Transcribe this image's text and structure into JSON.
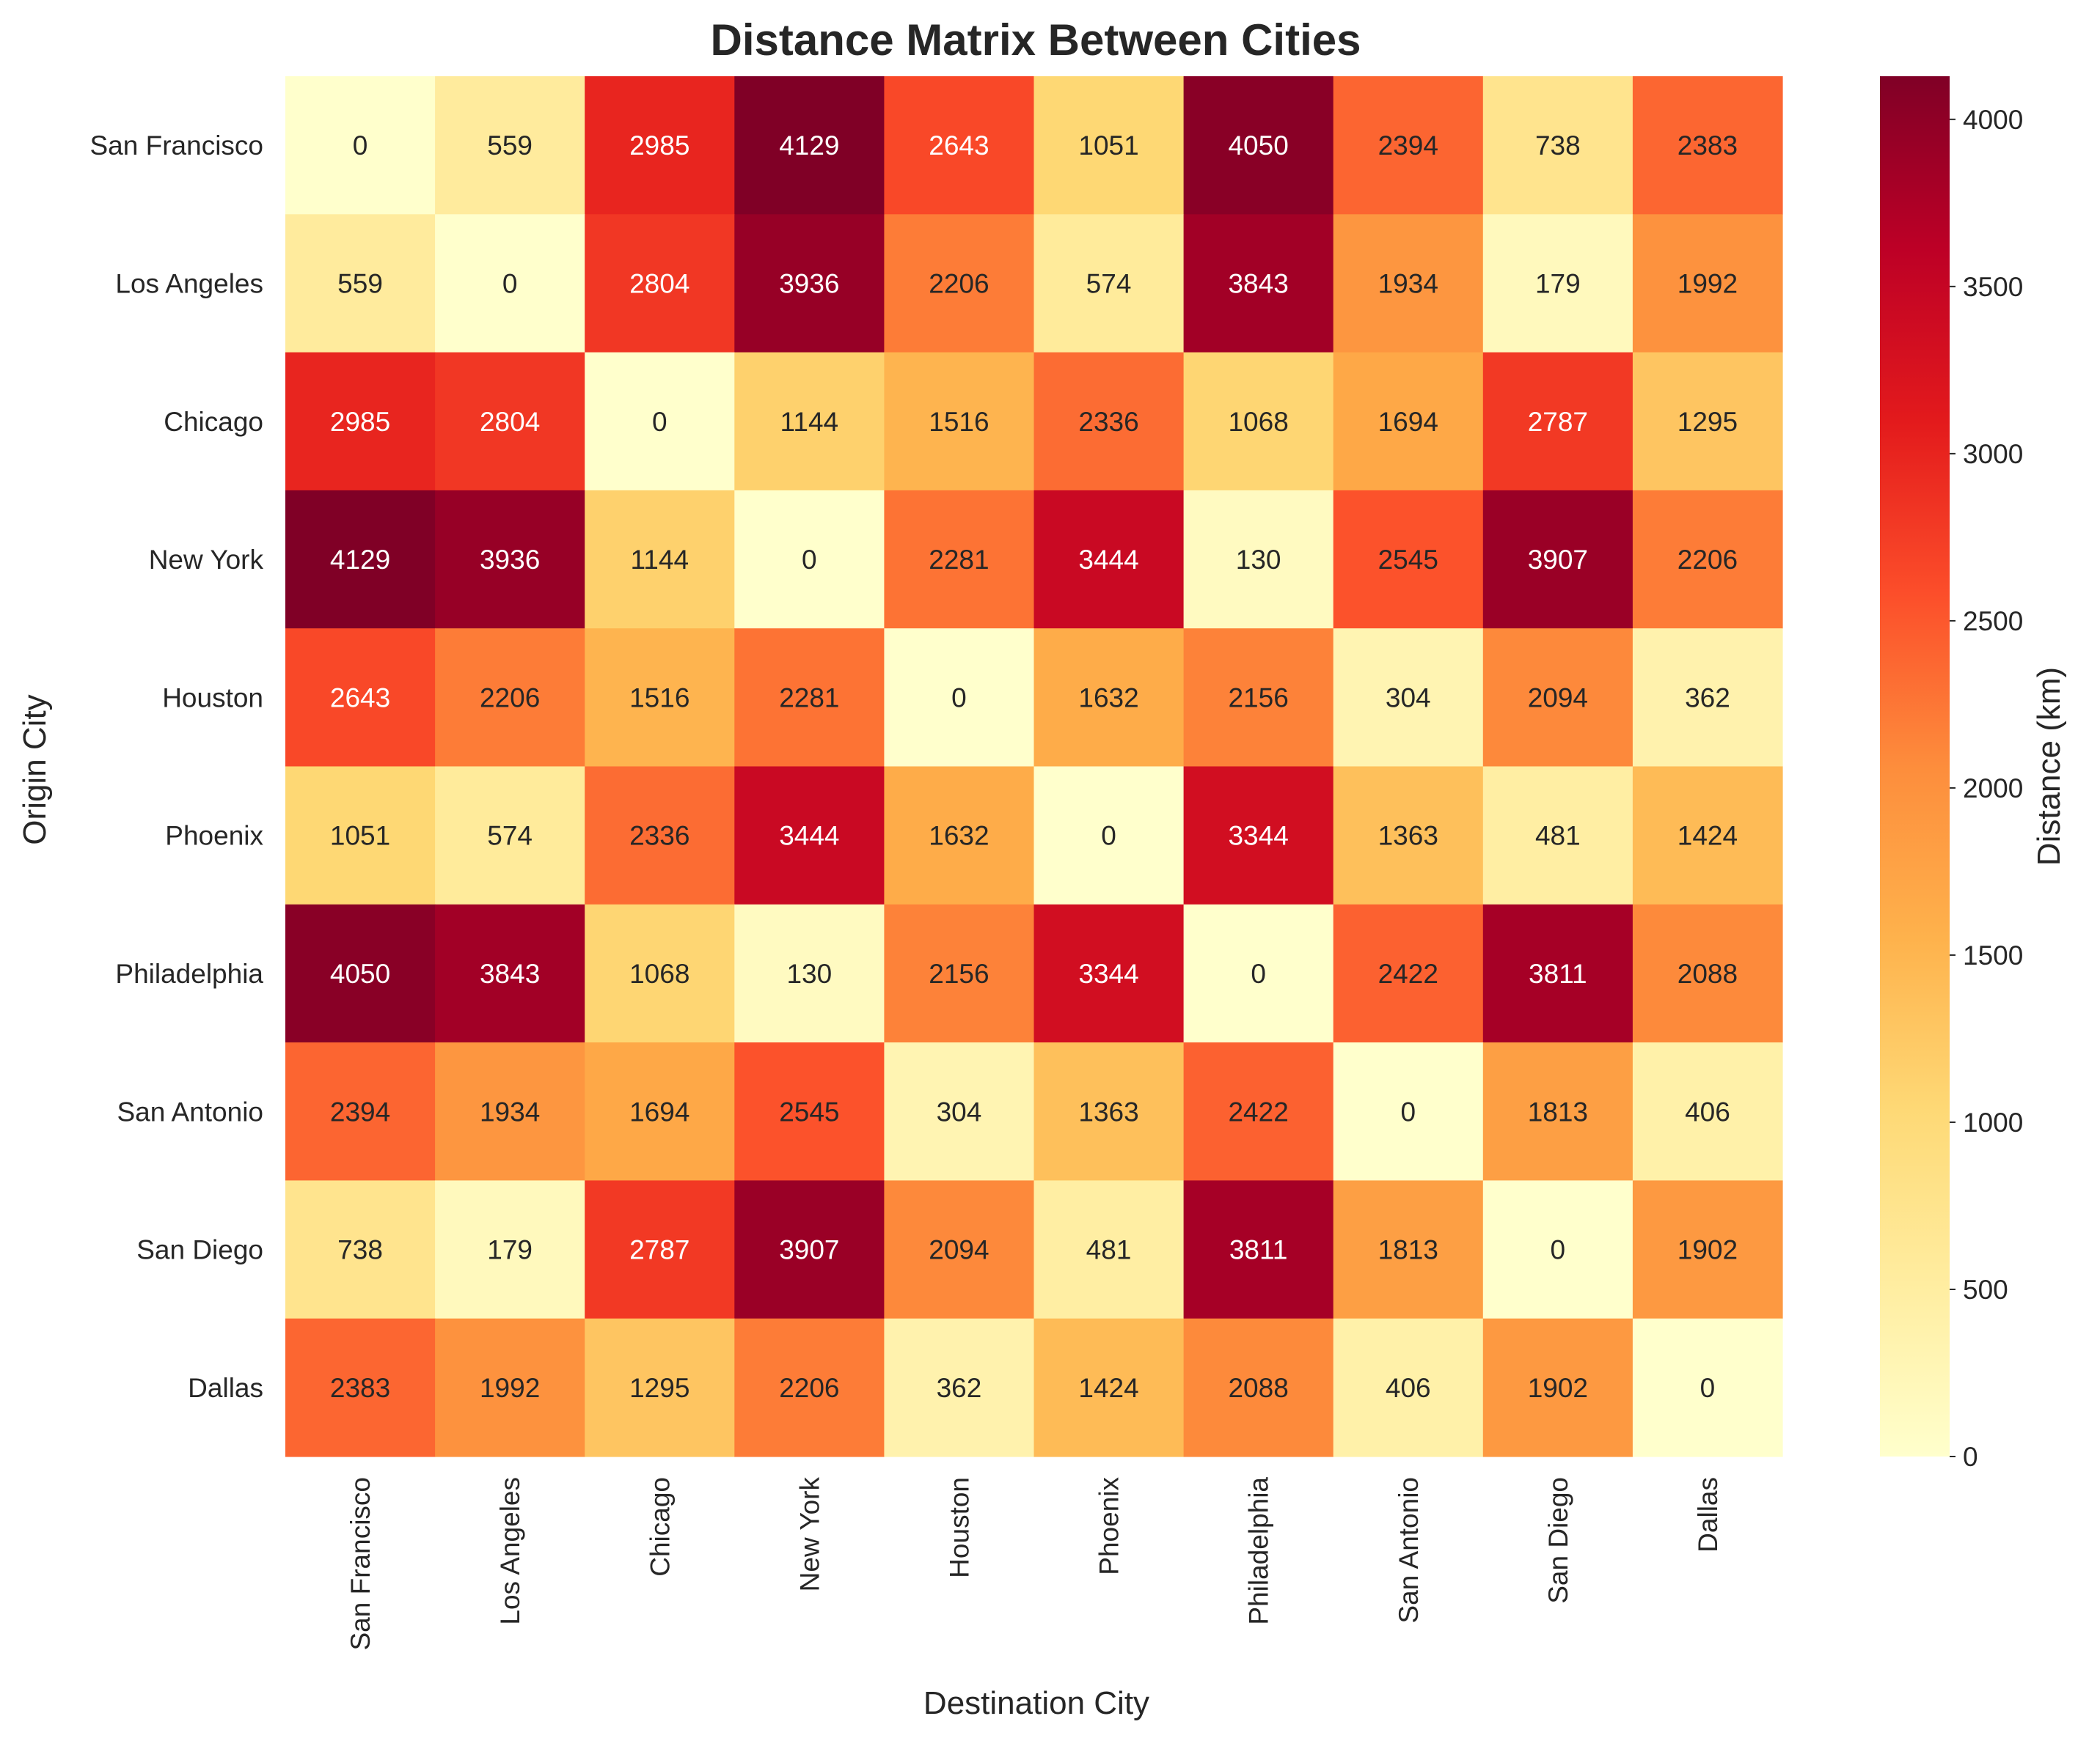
{
  "chart_data": {
    "type": "heatmap",
    "title": "Distance Matrix Between Cities",
    "xlabel": "Destination City",
    "ylabel": "Origin City",
    "colorbar_label": "Distance (km)",
    "colormap": "YlOrRd",
    "colormap_stops": [
      "#ffffcc",
      "#ffeda0",
      "#fed976",
      "#feb24c",
      "#fd8d3c",
      "#fc4e2a",
      "#e31a1c",
      "#bd0026",
      "#800026"
    ],
    "vmin": 0,
    "vmax": 4129,
    "colorbar_ticks": [
      0,
      500,
      1000,
      1500,
      2000,
      2500,
      3000,
      3500,
      4000
    ],
    "rows": [
      "San Francisco",
      "Los Angeles",
      "Chicago",
      "New York",
      "Houston",
      "Phoenix",
      "Philadelphia",
      "San Antonio",
      "San Diego",
      "Dallas"
    ],
    "columns": [
      "San Francisco",
      "Los Angeles",
      "Chicago",
      "New York",
      "Houston",
      "Phoenix",
      "Philadelphia",
      "San Antonio",
      "San Diego",
      "Dallas"
    ],
    "values": [
      [
        0,
        559,
        2985,
        4129,
        2643,
        1051,
        4050,
        2394,
        738,
        2383
      ],
      [
        559,
        0,
        2804,
        3936,
        2206,
        574,
        3843,
        1934,
        179,
        1992
      ],
      [
        2985,
        2804,
        0,
        1144,
        1516,
        2336,
        1068,
        1694,
        2787,
        1295
      ],
      [
        4129,
        3936,
        1144,
        0,
        2281,
        3444,
        130,
        2545,
        3907,
        2206
      ],
      [
        2643,
        2206,
        1516,
        2281,
        0,
        1632,
        2156,
        304,
        2094,
        362
      ],
      [
        1051,
        574,
        2336,
        3444,
        1632,
        0,
        3344,
        1363,
        481,
        1424
      ],
      [
        4050,
        3843,
        1068,
        130,
        2156,
        3344,
        0,
        2422,
        3811,
        2088
      ],
      [
        2394,
        1934,
        1694,
        2545,
        304,
        1363,
        2422,
        0,
        1813,
        406
      ],
      [
        738,
        179,
        2787,
        3907,
        2094,
        481,
        3811,
        1813,
        0,
        1902
      ],
      [
        2383,
        1992,
        1295,
        2206,
        362,
        1424,
        2088,
        406,
        1902,
        0
      ]
    ]
  }
}
